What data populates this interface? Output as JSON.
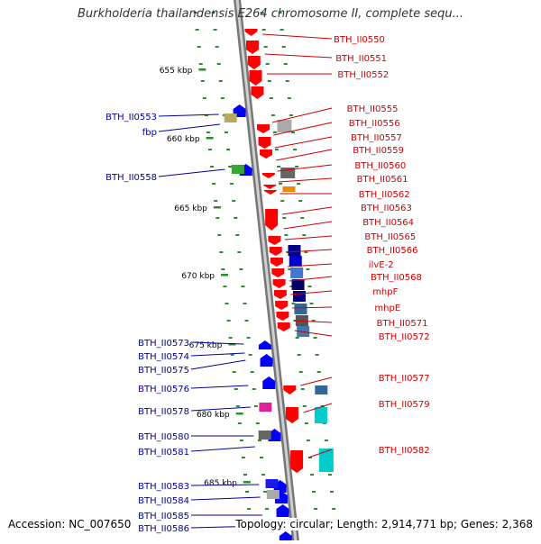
{
  "title": "Burkholderia thailandensis E264 chromosome II, complete sequ...",
  "footer": {
    "accession": "Accession: NC_007650",
    "topology": "Topology: circular; Length: 2,914,771 bp; Genes: 2,368"
  },
  "colors": {
    "forward_gene": "#ff0000",
    "reverse_gene": "#0000ff",
    "backbone": "#888888",
    "tick_dots": "#2e8b2e",
    "label_right": "#cc0000",
    "label_left": "#000099",
    "kbp_label": "#000000"
  },
  "kbp_marks": [
    "655 kbp",
    "660 kbp",
    "665 kbp",
    "670 kbp",
    "675 kbp",
    "680 kbp",
    "685 kbp"
  ],
  "right_labels": [
    "BTH_II0550",
    "BTH_II0551",
    "BTH_II0552",
    "BTH_II0555",
    "BTH_II0556",
    "BTH_II0557",
    "BTH_II0559",
    "BTH_II0560",
    "BTH_II0561",
    "BTH_II0562",
    "BTH_II0563",
    "BTH_II0564",
    "BTH_II0565",
    "BTH_II0566",
    "ilvE-2",
    "BTH_II0568",
    "mhpF",
    "mhpE",
    "BTH_II0571",
    "BTH_II0572",
    "BTH_II0577",
    "BTH_II0579",
    "BTH_II0582"
  ],
  "left_labels": [
    "BTH_II0553",
    "fbp",
    "BTH_II0558",
    "BTH_II0573",
    "BTH_II0574",
    "BTH_II0575",
    "BTH_II0576",
    "BTH_II0578",
    "BTH_II0580",
    "BTH_II0581",
    "BTH_II0583",
    "BTH_II0584",
    "BTH_II0585",
    "BTH_II0586"
  ]
}
